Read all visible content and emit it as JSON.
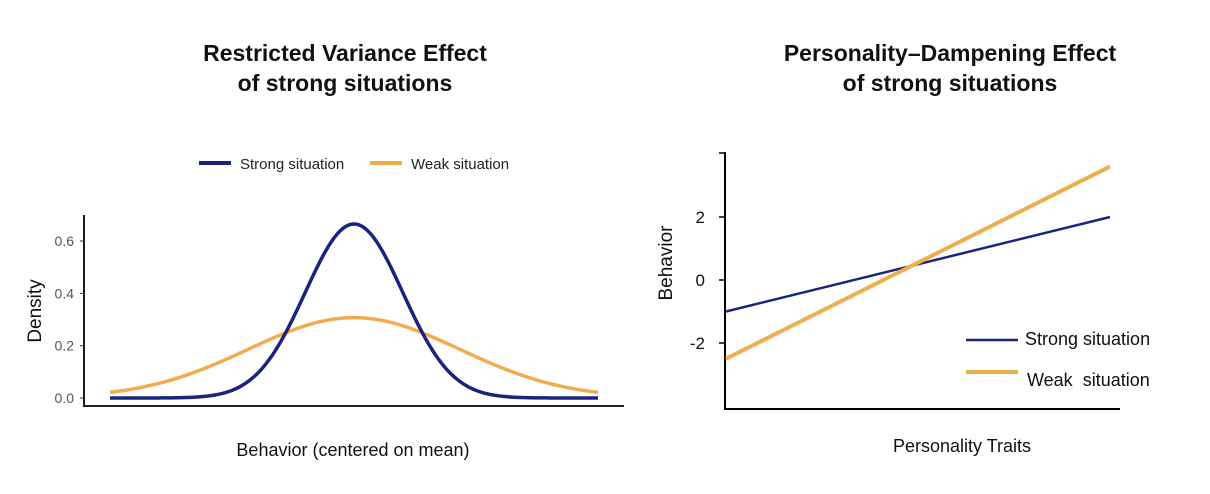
{
  "chart_data": [
    {
      "type": "line",
      "title_lines": [
        "Restricted Variance Effect",
        "of strong situations"
      ],
      "xlabel": "Behavior (centered on mean)",
      "ylabel": "Density",
      "ylim": [
        0,
        0.7
      ],
      "xlim": [
        -3,
        3
      ],
      "yticks": [
        "0.0",
        "0.2",
        "0.4",
        "0.6"
      ],
      "ytick_values": [
        0,
        0.2,
        0.4,
        0.6
      ],
      "legend_position": "top",
      "series": [
        {
          "name": "Strong situation",
          "color": "#1a237e",
          "distribution": "normal",
          "mean": 0,
          "sd": 0.6,
          "peak": 0.665
        },
        {
          "name": "Weak situation",
          "color": "#f0ad4e",
          "distribution": "normal",
          "mean": 0,
          "sd": 1.3,
          "peak": 0.307
        }
      ]
    },
    {
      "type": "line",
      "title_lines": [
        "Personality–Dampening Effect",
        "of strong situations"
      ],
      "xlabel": "Personality Traits",
      "ylabel": "Behavior",
      "ylim": [
        -4.1,
        3.9
      ],
      "xlim": [
        0,
        1
      ],
      "yticks": [
        "2",
        "0",
        "-2"
      ],
      "ytick_values": [
        2,
        0,
        -2
      ],
      "legend_position": "bottom-right",
      "series": [
        {
          "name": "Strong situation",
          "color": "#1a237e",
          "x": [
            0.04,
            1.0
          ],
          "y": [
            -1.0,
            2.0
          ]
        },
        {
          "name": "Weak  situation",
          "color": "#f0ad4e",
          "x": [
            0.04,
            1.0
          ],
          "y": [
            -2.5,
            3.6
          ]
        }
      ]
    }
  ]
}
